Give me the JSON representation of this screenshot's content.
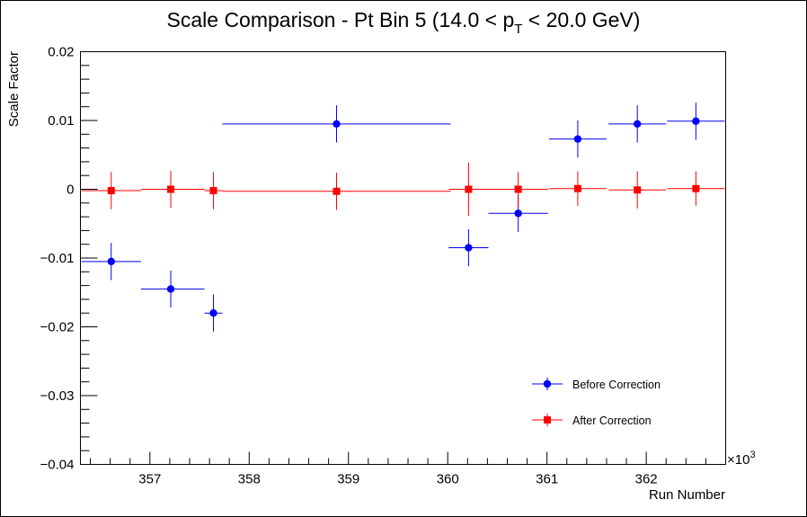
{
  "chart_data": {
    "type": "scatter",
    "title": "Scale Comparison - Pt Bin 5 (14.0 < p",
    "title_sub": "T",
    "title_tail": " < 20.0 GeV)",
    "xlabel": "Run Number",
    "ylabel": "Scale Factor",
    "x_multiplier_label": "×10",
    "x_multiplier_exp": "3",
    "xlim": [
      356.3,
      362.8
    ],
    "ylim": [
      -0.04,
      0.02
    ],
    "x_ticks": [
      357,
      358,
      359,
      360,
      361,
      362
    ],
    "y_ticks": [
      -0.04,
      -0.03,
      -0.02,
      -0.01,
      0,
      0.01,
      0.02
    ],
    "x_tick_labels": [
      "357",
      "358",
      "359",
      "360",
      "361",
      "362"
    ],
    "y_tick_labels": [
      "−0.04",
      "−0.03",
      "−0.02",
      "−0.01",
      "0",
      "0.01",
      "0.02"
    ],
    "grid": false,
    "legend_placement": "bottom-right",
    "series": [
      {
        "name": "Before Correction",
        "color": "#0000ff",
        "marker": "circle",
        "points": [
          {
            "x": 356.61,
            "y": -0.0105,
            "xerr": [
              0.3,
              0.3
            ],
            "yerr": 0.0027
          },
          {
            "x": 357.21,
            "y": -0.0145,
            "xerr": [
              0.3,
              0.34
            ],
            "yerr": 0.0027
          },
          {
            "x": 357.64,
            "y": -0.018,
            "xerr": [
              0.09,
              0.09
            ],
            "yerr": 0.0027
          },
          {
            "x": 358.88,
            "y": 0.0095,
            "xerr": [
              1.15,
              1.15
            ],
            "yerr": 0.0027
          },
          {
            "x": 360.21,
            "y": -0.0085,
            "xerr": [
              0.2,
              0.2
            ],
            "yerr": 0.0027
          },
          {
            "x": 360.71,
            "y": -0.0035,
            "xerr": [
              0.3,
              0.3
            ],
            "yerr": 0.0027
          },
          {
            "x": 361.31,
            "y": 0.0073,
            "xerr": [
              0.29,
              0.29
            ],
            "yerr": 0.0027
          },
          {
            "x": 361.91,
            "y": 0.0095,
            "xerr": [
              0.29,
              0.29
            ],
            "yerr": 0.0027
          },
          {
            "x": 362.5,
            "y": 0.0099,
            "xerr": [
              0.29,
              0.29
            ],
            "yerr": 0.0027
          }
        ]
      },
      {
        "name": "After Correction",
        "color": "#ff0000",
        "marker": "square",
        "points": [
          {
            "x": 356.61,
            "y": -0.0002,
            "xerr": [
              0.3,
              0.3
            ],
            "yerr": 0.0027
          },
          {
            "x": 357.21,
            "y": 0.0,
            "xerr": [
              0.3,
              0.34
            ],
            "yerr": 0.0027
          },
          {
            "x": 357.64,
            "y": -0.0002,
            "xerr": [
              0.09,
              0.09
            ],
            "yerr": 0.0027
          },
          {
            "x": 358.88,
            "y": -0.0003,
            "xerr": [
              1.15,
              1.15
            ],
            "yerr": 0.0027
          },
          {
            "x": 360.21,
            "y": 0.0,
            "xerr": [
              0.2,
              0.2
            ],
            "yerr": 0.0039
          },
          {
            "x": 360.71,
            "y": 0.0,
            "xerr": [
              0.3,
              0.3
            ],
            "yerr": 0.0025
          },
          {
            "x": 361.31,
            "y": 0.0001,
            "xerr": [
              0.29,
              0.29
            ],
            "yerr": 0.0025
          },
          {
            "x": 361.91,
            "y": -0.0001,
            "xerr": [
              0.29,
              0.29
            ],
            "yerr": 0.0027
          },
          {
            "x": 362.5,
            "y": 0.0001,
            "xerr": [
              0.29,
              0.29
            ],
            "yerr": 0.0025
          }
        ]
      }
    ]
  }
}
